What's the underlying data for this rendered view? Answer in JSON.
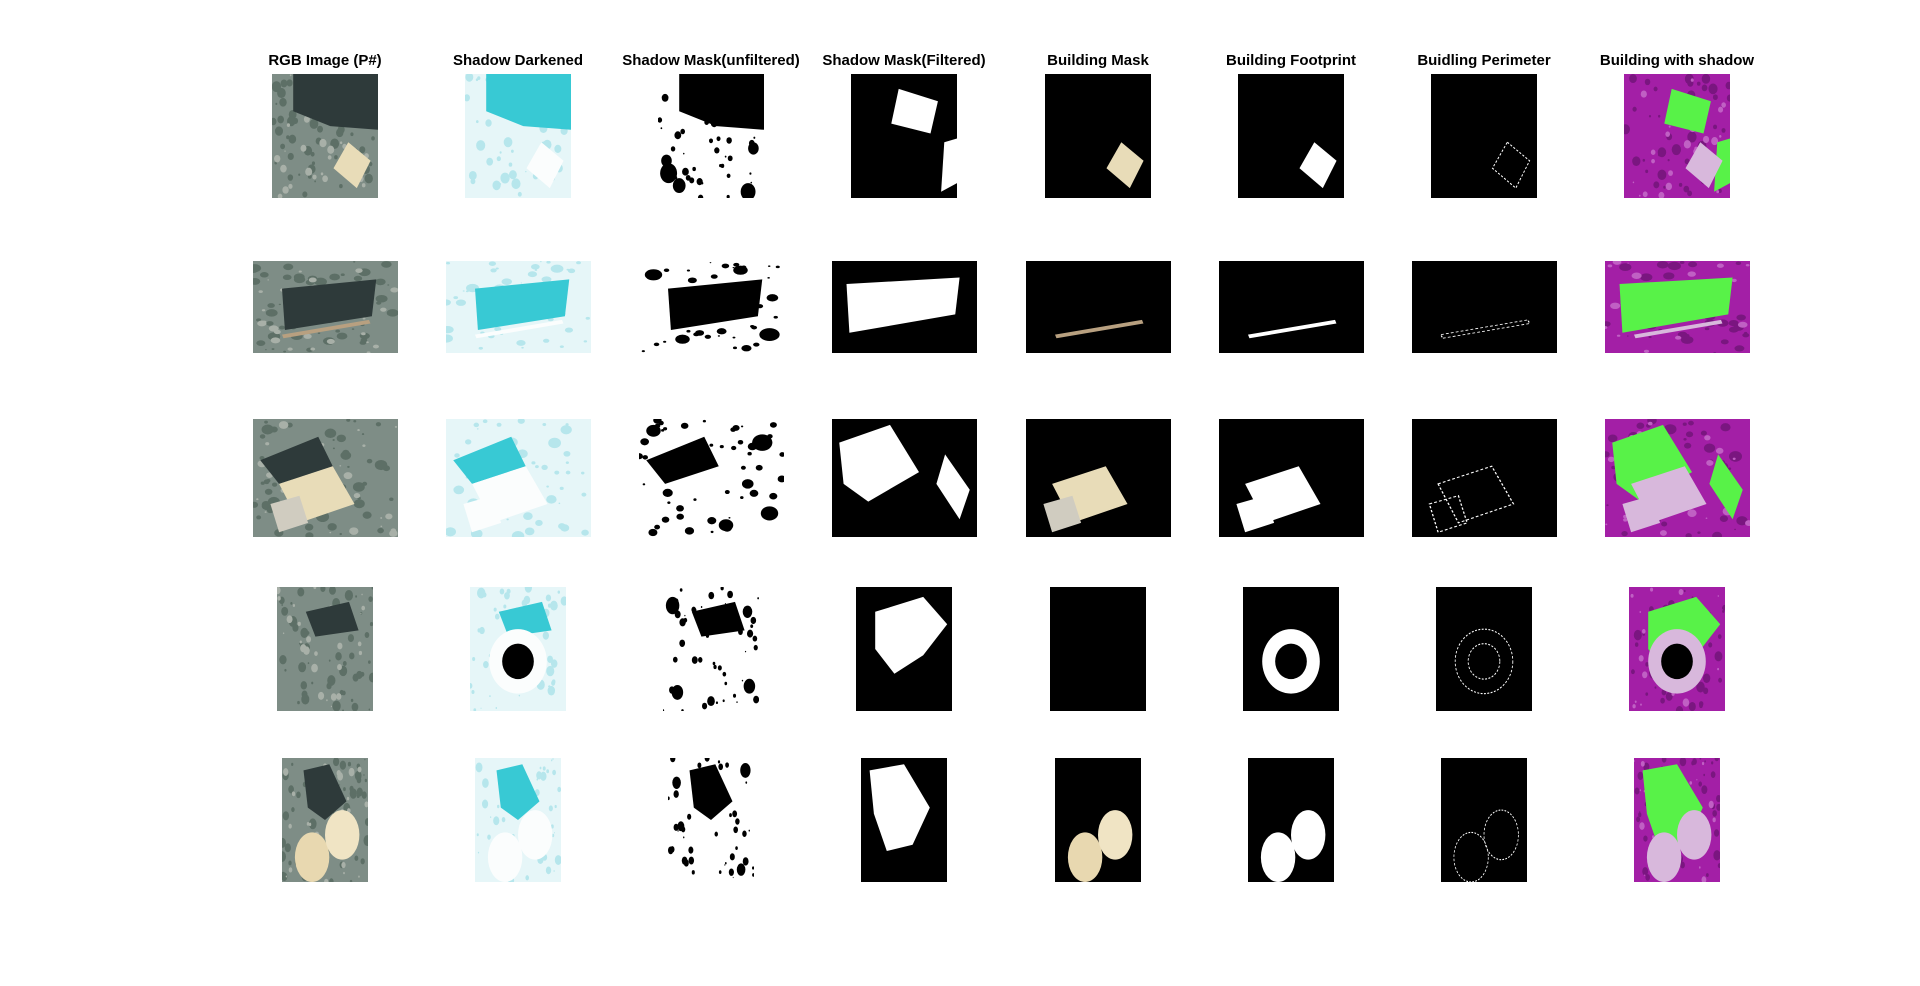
{
  "figure": {
    "columns": [
      {
        "key": "rgb",
        "title": "RGB Image (P#)"
      },
      {
        "key": "darkened",
        "title": "Shadow Darkened"
      },
      {
        "key": "mask_unfiltered",
        "title": "Shadow Mask(unfiltered)"
      },
      {
        "key": "mask_filtered",
        "title": "Shadow Mask(Filtered)"
      },
      {
        "key": "building_mask",
        "title": "Building Mask"
      },
      {
        "key": "footprint",
        "title": "Building Footprint"
      },
      {
        "key": "perimeter",
        "title": "Buidling Perimeter"
      },
      {
        "key": "with_shadow",
        "title": "Building with shadow"
      }
    ],
    "rows": [
      {
        "scene": "warehouse-and-slanted-roof"
      },
      {
        "scene": "long-narrow-building"
      },
      {
        "scene": "two-rectangular-buildings"
      },
      {
        "scene": "stadium"
      },
      {
        "scene": "twin-round-tanks"
      }
    ],
    "colors": {
      "background": "#ffffff",
      "mask_black": "#000000",
      "mask_white": "#ffffff",
      "shadow_overlay": "#58f248",
      "magenta_tint": "#a31fa6",
      "cyan_tint": "#38c9d4"
    }
  }
}
